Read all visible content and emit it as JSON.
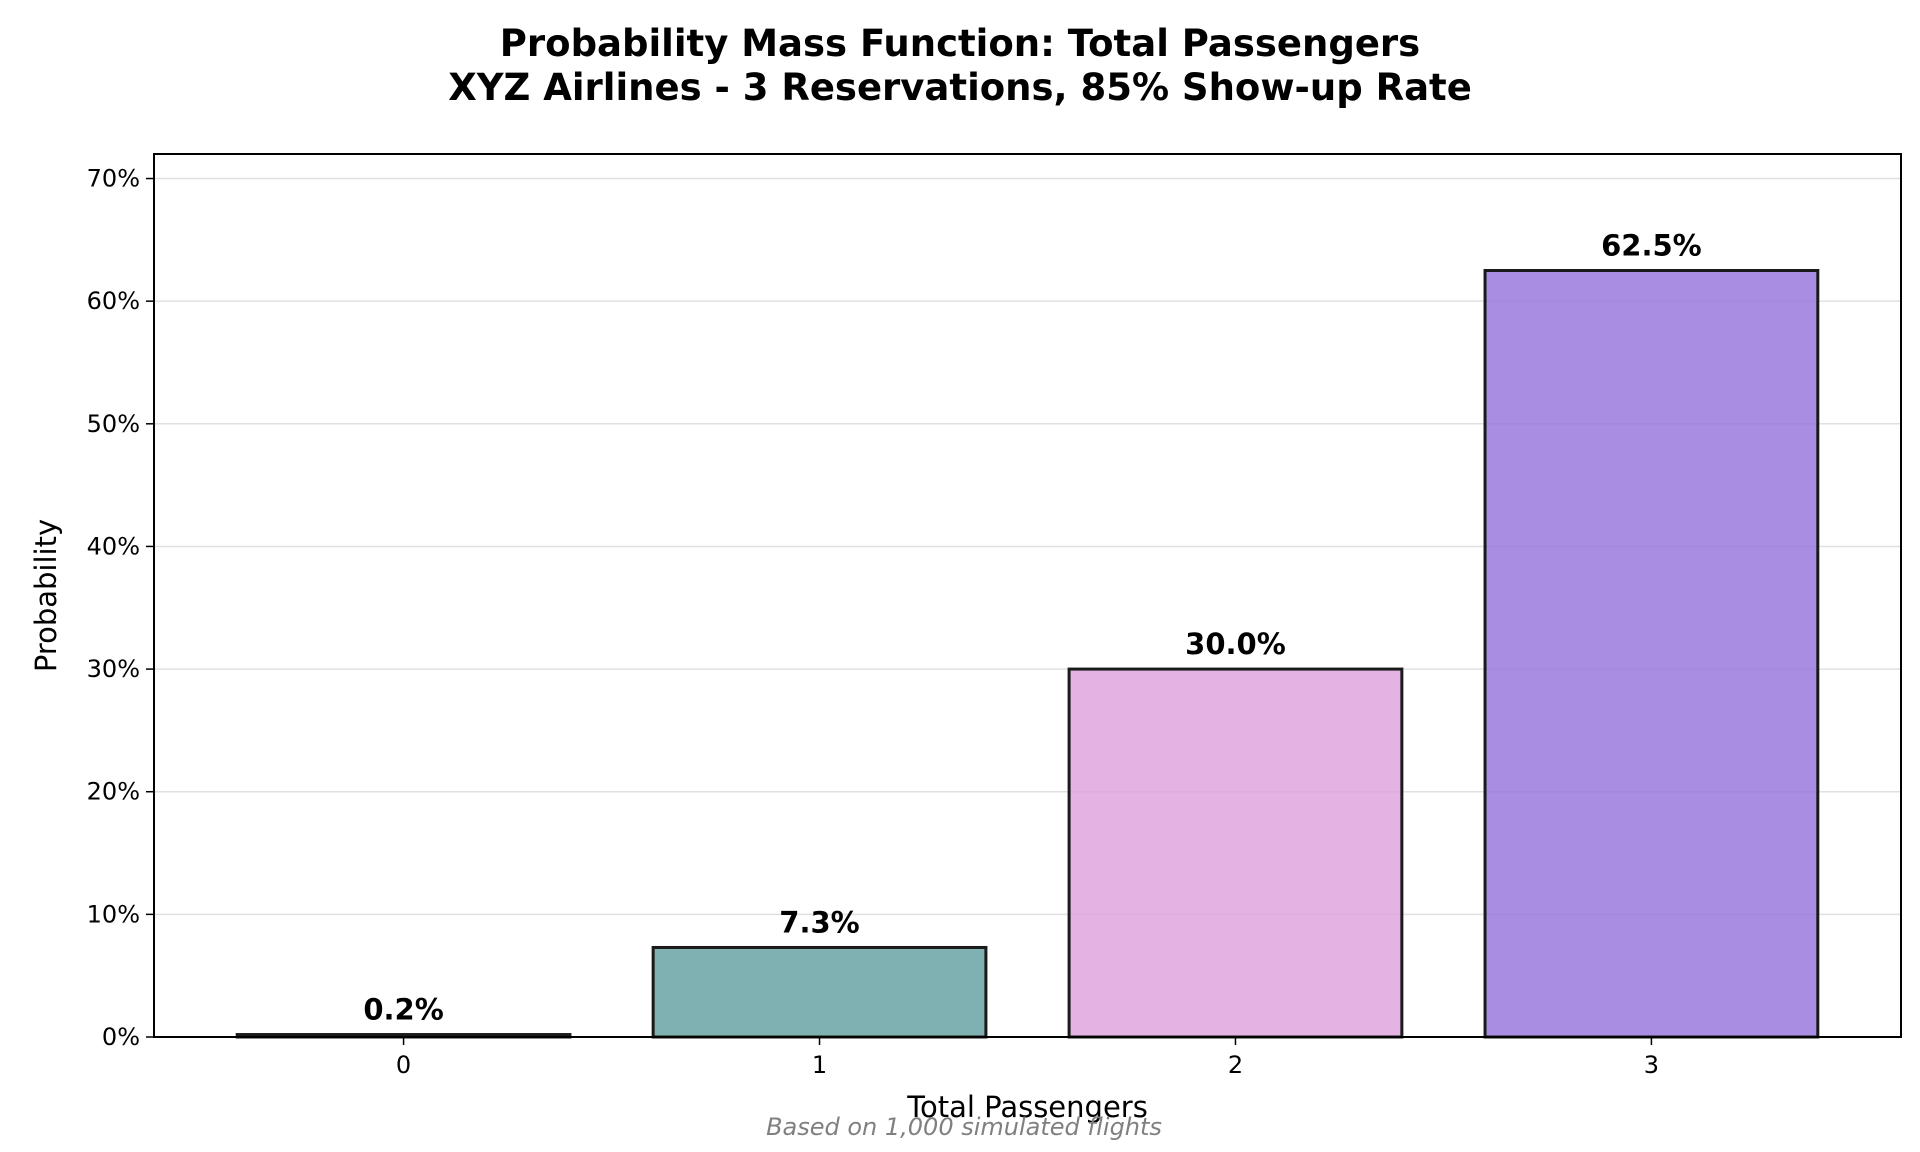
{
  "chart_data": {
    "type": "bar",
    "title": "Probability Mass Function: Total Passengers",
    "subtitle": "XYZ Airlines - 3 Reservations, 85% Show-up Rate",
    "xlabel": "Total Passengers",
    "ylabel": "Probability",
    "categories": [
      "0",
      "1",
      "2",
      "3"
    ],
    "values": [
      0.2,
      7.3,
      30.0,
      62.5
    ],
    "data_labels": [
      "0.2%",
      "7.3%",
      "30.0%",
      "62.5%"
    ],
    "colors": [
      "#2e8b57",
      "#5f9ea0",
      "#dda0dd",
      "#9370db"
    ],
    "ylim": [
      0,
      72
    ],
    "yticks": [
      0,
      10,
      20,
      30,
      40,
      50,
      60,
      70
    ],
    "ytick_labels": [
      "0%",
      "10%",
      "20%",
      "30%",
      "40%",
      "50%",
      "60%",
      "70%"
    ],
    "grid": "y",
    "footnote": "Based on 1,000 simulated flights"
  }
}
